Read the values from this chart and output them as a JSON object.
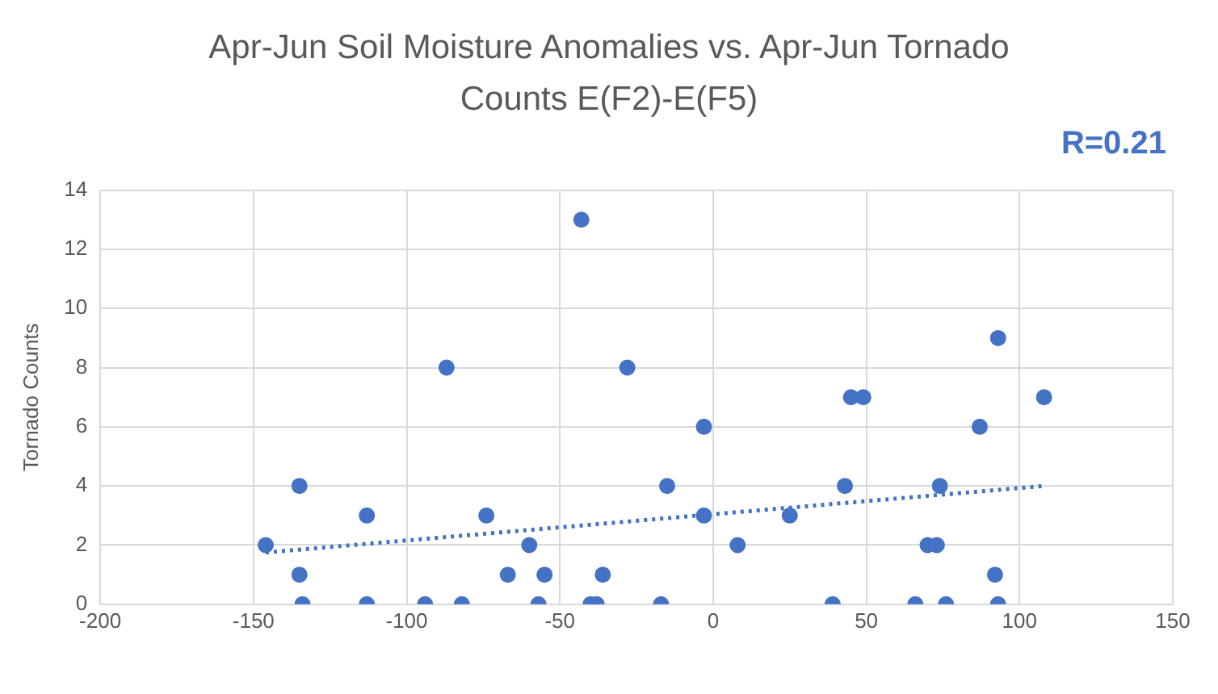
{
  "chart_data": {
    "type": "scatter",
    "title": "Apr-Jun Soil Moisture Anomalies vs. Apr-Jun Tornado Counts E(F2)-E(F5)",
    "ylabel": "Tornado Counts",
    "annotations": [
      "R=0.21"
    ],
    "xlim": [
      -200,
      150
    ],
    "xticks": [
      -200,
      -150,
      -100,
      -50,
      0,
      50,
      100,
      150
    ],
    "ylim": [
      0,
      14
    ],
    "yticks": [
      0,
      2,
      4,
      6,
      8,
      10,
      12,
      14
    ],
    "grid": true,
    "legend": false,
    "marker": "circle",
    "series": [
      {
        "type": "scatter",
        "color": "#4472c4",
        "x": [
          -146,
          -135,
          -135,
          -134,
          -113,
          -113,
          -94,
          -87,
          -82,
          -74,
          -67,
          -60,
          -57,
          -55,
          -43,
          -40,
          -38,
          -36,
          -28,
          -17,
          -15,
          -3,
          -3,
          8,
          25,
          39,
          43,
          45,
          49,
          66,
          70,
          73,
          74,
          76,
          87,
          92,
          93,
          93,
          108
        ],
        "values": [
          2,
          4,
          1,
          0,
          3,
          0,
          0,
          8,
          0,
          3,
          1,
          2,
          0,
          1,
          13,
          0,
          0,
          1,
          8,
          0,
          4,
          6,
          3,
          2,
          3,
          0,
          4,
          7,
          7,
          0,
          2,
          2,
          4,
          0,
          6,
          1,
          0,
          9,
          7
        ]
      },
      {
        "type": "line",
        "color": "#4472c4",
        "line_style": "dotted",
        "marker": "none",
        "x": [
          -146,
          108
        ],
        "values": [
          1.75,
          4.0
        ]
      }
    ]
  }
}
